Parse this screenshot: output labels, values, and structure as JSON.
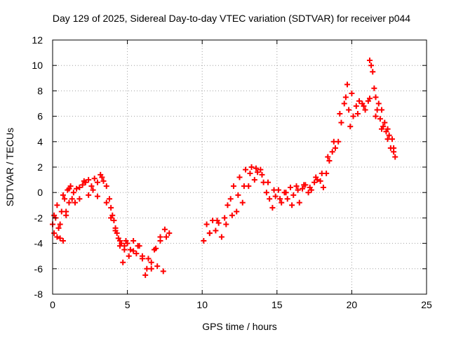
{
  "chart_data": {
    "type": "scatter",
    "title": "Day 129 of 2025, Sidereal Day-to-day VTEC variation (SDTVAR) for receiver p044",
    "xlabel": "GPS time / hours",
    "ylabel": "SDTVAR / TECUs",
    "xlim": [
      0,
      25
    ],
    "ylim": [
      -8,
      12
    ],
    "xticks": [
      0,
      5,
      10,
      15,
      20,
      25
    ],
    "yticks": [
      -8,
      -6,
      -4,
      -2,
      0,
      2,
      4,
      6,
      8,
      10,
      12
    ],
    "grid": true,
    "marker": "+",
    "color": "#ff0000",
    "series": [
      {
        "name": "SDTVAR",
        "x": [
          0.0,
          0.1,
          0.2,
          0.3,
          0.4,
          0.5,
          0.6,
          0.7,
          0.8,
          0.9,
          1.0,
          1.1,
          1.2,
          1.4,
          1.6,
          1.8,
          2.0,
          2.2,
          2.4,
          2.6,
          2.8,
          3.0,
          3.2,
          3.4,
          3.6,
          3.8,
          3.9,
          4.0,
          4.1,
          4.2,
          4.3,
          4.4,
          4.5,
          4.6,
          4.7,
          4.8,
          4.9,
          5.0,
          5.2,
          5.4,
          5.6,
          5.8,
          6.0,
          6.2,
          6.4,
          6.6,
          6.8,
          7.0,
          7.2,
          7.4,
          7.6,
          7.8,
          0.1,
          0.3,
          0.5,
          0.7,
          0.9,
          1.1,
          1.3,
          1.5,
          1.8,
          2.1,
          2.4,
          2.7,
          3.0,
          3.3,
          3.6,
          3.9,
          4.2,
          4.5,
          4.8,
          5.1,
          5.4,
          5.7,
          6.0,
          6.3,
          6.6,
          6.9,
          7.2,
          7.5,
          10.1,
          10.3,
          10.5,
          10.7,
          10.9,
          11.1,
          11.3,
          11.5,
          11.7,
          11.9,
          12.1,
          12.3,
          12.5,
          12.7,
          12.9,
          13.1,
          13.3,
          13.5,
          13.7,
          13.9,
          14.1,
          14.3,
          14.5,
          14.7,
          14.9,
          15.1,
          15.3,
          15.5,
          15.7,
          15.9,
          16.1,
          16.3,
          16.5,
          16.7,
          16.9,
          17.1,
          17.3,
          17.5,
          17.7,
          17.9,
          18.1,
          18.3,
          18.5,
          18.7,
          18.9,
          19.1,
          19.3,
          19.5,
          19.7,
          19.8,
          19.9,
          20.1,
          20.3,
          20.5,
          20.7,
          20.9,
          21.1,
          21.2,
          21.3,
          21.4,
          21.5,
          21.6,
          21.7,
          21.8,
          21.9,
          22.0,
          22.1,
          22.2,
          22.3,
          22.4,
          22.5,
          22.6,
          22.7,
          22.8,
          22.9,
          10.5,
          11.0,
          11.6,
          12.0,
          12.4,
          12.8,
          13.2,
          13.6,
          14.0,
          14.4,
          14.8,
          15.2,
          15.6,
          16.0,
          16.4,
          16.8,
          17.2,
          17.6,
          18.0,
          18.4,
          18.8,
          19.2,
          19.6,
          20.0,
          20.4,
          20.8,
          21.2,
          21.6,
          22.0,
          22.4,
          22.8
        ],
        "y": [
          -2.5,
          -3.2,
          -2.0,
          -3.5,
          -2.8,
          -3.6,
          -1.5,
          -3.8,
          -0.5,
          -1.8,
          0.2,
          -0.8,
          0.5,
          0.0,
          0.3,
          -0.5,
          0.6,
          0.8,
          1.0,
          0.5,
          1.1,
          0.8,
          1.4,
          0.9,
          0.5,
          -0.5,
          -1.2,
          -1.8,
          -2.2,
          -2.8,
          -3.2,
          -3.6,
          -3.8,
          -4.0,
          -5.5,
          -4.2,
          -3.8,
          -4.0,
          -4.5,
          -3.8,
          -4.8,
          -4.2,
          -5.0,
          -6.5,
          -5.2,
          -6.0,
          -4.5,
          -5.8,
          -3.8,
          -6.2,
          -3.5,
          -3.2,
          -1.8,
          -1.0,
          -2.5,
          -0.2,
          -1.5,
          0.3,
          -0.5,
          -0.8,
          0.4,
          0.9,
          -0.2,
          0.2,
          -0.3,
          1.2,
          -0.8,
          -2.0,
          -3.0,
          -4.2,
          -4.5,
          -5.0,
          -4.6,
          -4.2,
          -5.2,
          -6.0,
          -5.5,
          -4.4,
          -3.5,
          -2.9,
          -3.8,
          -2.5,
          -3.2,
          -2.2,
          -3.0,
          -2.4,
          -3.5,
          -2.0,
          -1.0,
          -0.5,
          0.5,
          -1.5,
          1.2,
          -0.8,
          1.8,
          0.5,
          2.0,
          1.0,
          1.6,
          1.8,
          0.8,
          0.0,
          -0.5,
          -1.2,
          -0.3,
          0.2,
          -0.8,
          0.0,
          -0.5,
          0.4,
          -0.2,
          0.5,
          -0.8,
          0.3,
          0.6,
          0.0,
          0.2,
          0.8,
          1.0,
          0.9,
          0.4,
          1.5,
          2.5,
          3.2,
          3.5,
          4.0,
          5.5,
          7.0,
          8.5,
          6.5,
          5.2,
          6.0,
          6.8,
          7.2,
          7.0,
          6.5,
          7.2,
          10.4,
          10.0,
          9.5,
          8.2,
          7.5,
          6.5,
          7.0,
          5.8,
          6.5,
          5.2,
          5.5,
          4.8,
          5.0,
          4.5,
          3.5,
          4.2,
          3.2,
          2.8,
          -3.2,
          -2.2,
          -2.5,
          -1.8,
          -0.2,
          0.5,
          1.5,
          1.9,
          1.4,
          0.8,
          0.2,
          -0.5,
          0.0,
          -1.0,
          0.2,
          0.6,
          0.4,
          1.2,
          1.5,
          2.8,
          4.0,
          6.2,
          7.5,
          7.8,
          6.2,
          6.8,
          7.4,
          6.0,
          5.0,
          4.2,
          3.5
        ]
      }
    ]
  }
}
